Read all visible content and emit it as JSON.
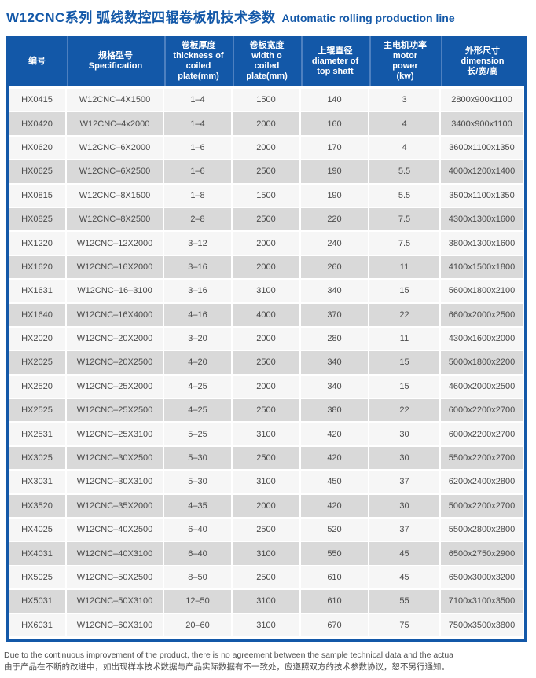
{
  "title": {
    "cn": "W12CNC系列 弧线数控四辊卷板机技术参数",
    "en": "Automatic rolling production line"
  },
  "table": {
    "headers": [
      "编号",
      "规格型号\nSpecification",
      "卷板厚度\nthickness of\ncoiled\nplate(mm)",
      "卷板宽度\nwidth o\ncoiled\nplate(mm)",
      "上辊直径\ndiameter of\ntop shaft",
      "主电机功率\nmotor\npower\n(kw)",
      "外形尺寸\ndimension\n长/宽/高"
    ],
    "rows": [
      [
        "HX0415",
        "W12CNC–4X1500",
        "1–4",
        "1500",
        "140",
        "3",
        "2800x900x1100"
      ],
      [
        "HX0420",
        "W12CNC–4x2000",
        "1–4",
        "2000",
        "160",
        "4",
        "3400x900x1100"
      ],
      [
        "HX0620",
        "W12CNC–6X2000",
        "1–6",
        "2000",
        "170",
        "4",
        "3600x1100x1350"
      ],
      [
        "HX0625",
        "W12CNC–6X2500",
        "1–6",
        "2500",
        "190",
        "5.5",
        "4000x1200x1400"
      ],
      [
        "HX0815",
        "W12CNC–8X1500",
        "1–8",
        "1500",
        "190",
        "5.5",
        "3500x1100x1350"
      ],
      [
        "HX0825",
        "W12CNC–8X2500",
        "2–8",
        "2500",
        "220",
        "7.5",
        "4300x1300x1600"
      ],
      [
        "HX1220",
        "W12CNC–12X2000",
        "3–12",
        "2000",
        "240",
        "7.5",
        "3800x1300x1600"
      ],
      [
        "HX1620",
        "W12CNC–16X2000",
        "3–16",
        "2000",
        "260",
        "11",
        "4100x1500x1800"
      ],
      [
        "HX1631",
        "W12CNC–16–3100",
        "3–16",
        "3100",
        "340",
        "15",
        "5600x1800x2100"
      ],
      [
        "HX1640",
        "W12CNC–16X4000",
        "4–16",
        "4000",
        "370",
        "22",
        "6600x2000x2500"
      ],
      [
        "HX2020",
        "W12CNC–20X2000",
        "3–20",
        "2000",
        "280",
        "11",
        "4300x1600x2000"
      ],
      [
        "HX2025",
        "W12CNC–20X2500",
        "4–20",
        "2500",
        "340",
        "15",
        "5000x1800x2200"
      ],
      [
        "HX2520",
        "W12CNC–25X2000",
        "4–25",
        "2000",
        "340",
        "15",
        "4600x2000x2500"
      ],
      [
        "HX2525",
        "W12CNC–25X2500",
        "4–25",
        "2500",
        "380",
        "22",
        "6000x2200x2700"
      ],
      [
        "HX2531",
        "W12CNC–25X3100",
        "5–25",
        "3100",
        "420",
        "30",
        "6000x2200x2700"
      ],
      [
        "HX3025",
        "W12CNC–30X2500",
        "5–30",
        "2500",
        "420",
        "30",
        "5500x2200x2700"
      ],
      [
        "HX3031",
        "W12CNC–30X3100",
        "5–30",
        "3100",
        "450",
        "37",
        "6200x2400x2800"
      ],
      [
        "HX3520",
        "W12CNC–35X2000",
        "4–35",
        "2000",
        "420",
        "30",
        "5000x2200x2700"
      ],
      [
        "HX4025",
        "W12CNC–40X2500",
        "6–40",
        "2500",
        "520",
        "37",
        "5500x2800x2800"
      ],
      [
        "HX4031",
        "W12CNC–40X3100",
        "6–40",
        "3100",
        "550",
        "45",
        "6500x2750x2900"
      ],
      [
        "HX5025",
        "W12CNC–50X2500",
        "8–50",
        "2500",
        "610",
        "45",
        "6500x3000x3200"
      ],
      [
        "HX5031",
        "W12CNC–50X3100",
        "12–50",
        "3100",
        "610",
        "55",
        "7100x3100x3500"
      ],
      [
        "HX6031",
        "W12CNC–60X3100",
        "20–60",
        "3100",
        "670",
        "75",
        "7500x3500x3800"
      ]
    ]
  },
  "footer": {
    "en": "Due to the continuous improvement of the product, there is no agreement between the sample technical data and the actua",
    "cn": "由于产品在不断的改进中，如出现样本技术数据与产品实际数据有不一致处，应遵照双方的技术参数协议，恕不另行通知。"
  },
  "colors": {
    "header_blue": "#1358a8",
    "divider_blue": "#4d80c0",
    "row_gray": "#d9d9d9",
    "row_light": "#f6f6f6",
    "cell_text": "#4a4a4a"
  }
}
